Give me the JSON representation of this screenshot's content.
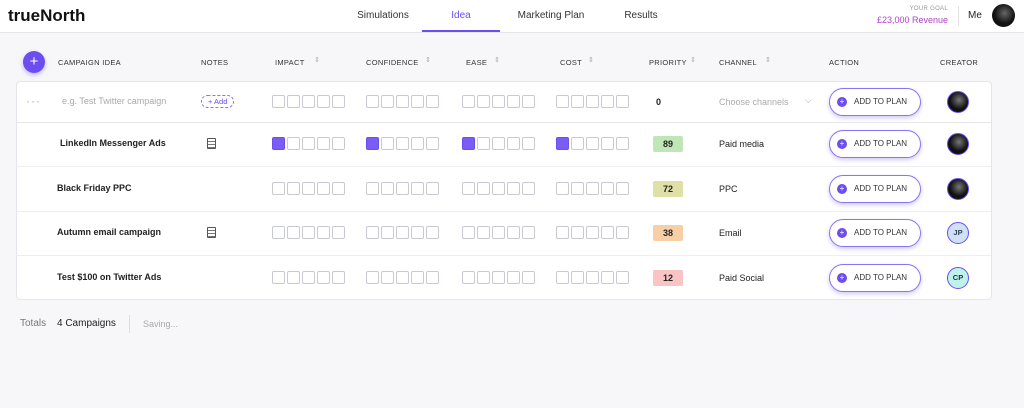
{
  "header": {
    "logo": "trueNorth",
    "nav": [
      "Simulations",
      "Idea",
      "Marketing Plan",
      "Results"
    ],
    "active_tab": 1,
    "goal_label": "YOUR GOAL",
    "goal_value": "£23,000 Revenue",
    "user": "Me"
  },
  "table": {
    "columns": [
      "CAMPAIGN IDEA",
      "NOTES",
      "IMPACT",
      "CONFIDENCE",
      "EASE",
      "COST",
      "PRIORITY",
      "CHANNEL",
      "ACTION",
      "CREATOR"
    ],
    "new_row": {
      "placeholder": "e.g. Test Twitter campaign",
      "add_note": "+ Add",
      "priority": 0,
      "channel_placeholder": "Choose channels",
      "action": "ADD TO PLAN"
    },
    "rows": [
      {
        "name": "LinkedIn Messenger Ads",
        "has_note": true,
        "impact": 1,
        "confidence": 1,
        "ease": 1,
        "cost": 1,
        "priority": 89,
        "priority_color": "#bfe6b5",
        "channel": "Paid media",
        "action": "ADD TO PLAN",
        "creator": null
      },
      {
        "name": "Black Friday PPC",
        "has_note": false,
        "impact": 0,
        "confidence": 0,
        "ease": 0,
        "cost": 0,
        "priority": 72,
        "priority_color": "#dfe0a6",
        "channel": "PPC",
        "action": "ADD TO PLAN",
        "creator": null
      },
      {
        "name": "Autumn email campaign",
        "has_note": true,
        "impact": 0,
        "confidence": 0,
        "ease": 0,
        "cost": 0,
        "priority": 38,
        "priority_color": "#f7cfa6",
        "channel": "Email",
        "action": "ADD TO PLAN",
        "creator": "JP"
      },
      {
        "name": "Test $100 on Twitter Ads",
        "has_note": false,
        "impact": 0,
        "confidence": 0,
        "ease": 0,
        "cost": 0,
        "priority": 12,
        "priority_color": "#f8c4c4",
        "channel": "Paid Social",
        "action": "ADD TO PLAN",
        "creator": "CP"
      }
    ]
  },
  "footer": {
    "totals_label": "Totals",
    "count": "4 Campaigns",
    "status": "Saving..."
  }
}
